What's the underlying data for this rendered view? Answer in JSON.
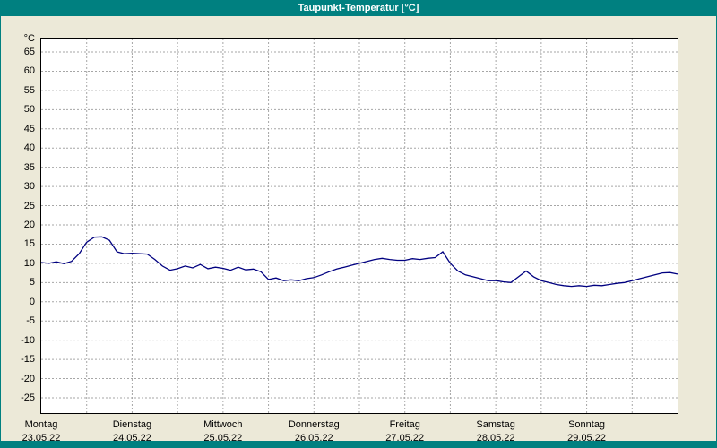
{
  "title_bar": {
    "title": "Taupunkt-Temperatur [°C]",
    "background_color": "#008080",
    "text_color": "#ffffff"
  },
  "chart_data": {
    "type": "line",
    "title": "Taupunkt-Temperatur [°C]",
    "y_axis_unit": "°C",
    "ylim": [
      -25,
      65
    ],
    "y_ticks": [
      65,
      60,
      55,
      50,
      45,
      40,
      35,
      30,
      25,
      20,
      15,
      10,
      5,
      0,
      -5,
      -10,
      -15,
      -20,
      -25
    ],
    "grid": "dashed",
    "grid_color": "#a6a6a6",
    "line_color": "#000080",
    "plot_background": "#ffffff",
    "x_total_hours": 168,
    "x_gridline_interval_hours": 12,
    "x_days": [
      {
        "name": "Montag",
        "date": "23.05.22"
      },
      {
        "name": "Dienstag",
        "date": "24.05.22"
      },
      {
        "name": "Mittwoch",
        "date": "25.05.22"
      },
      {
        "name": "Donnerstag",
        "date": "26.05.22"
      },
      {
        "name": "Freitag",
        "date": "27.05.22"
      },
      {
        "name": "Samstag",
        "date": "28.05.22"
      },
      {
        "name": "Sonntag",
        "date": "29.05.22"
      }
    ],
    "series": [
      {
        "name": "Taupunkt-Temperatur",
        "unit": "°C",
        "hours": [
          0,
          2,
          4,
          6,
          8,
          10,
          12,
          14,
          16,
          18,
          20,
          22,
          24,
          26,
          28,
          30,
          32,
          34,
          36,
          38,
          40,
          42,
          44,
          46,
          48,
          50,
          52,
          54,
          56,
          58,
          60,
          62,
          64,
          66,
          68,
          70,
          72,
          74,
          76,
          78,
          80,
          82,
          84,
          86,
          88,
          90,
          92,
          94,
          96,
          98,
          100,
          102,
          104,
          106,
          108,
          110,
          112,
          114,
          116,
          118,
          120,
          122,
          124,
          126,
          128,
          130,
          132,
          134,
          136,
          138,
          140,
          142,
          144,
          146,
          148,
          150,
          152,
          154,
          156,
          158,
          160,
          162,
          164,
          166,
          168
        ],
        "values": [
          10.2,
          10.0,
          10.4,
          9.9,
          10.5,
          12.5,
          15.5,
          16.8,
          16.9,
          16.0,
          13.0,
          12.5,
          12.6,
          12.5,
          12.4,
          11.0,
          9.3,
          8.2,
          8.6,
          9.3,
          8.8,
          9.7,
          8.6,
          9.0,
          8.7,
          8.2,
          9.0,
          8.3,
          8.5,
          7.8,
          5.8,
          6.2,
          5.5,
          5.7,
          5.5,
          6.0,
          6.3,
          7.0,
          7.8,
          8.5,
          9.0,
          9.5,
          10.0,
          10.5,
          11.0,
          11.3,
          11.0,
          10.8,
          10.8,
          11.2,
          11.0,
          11.3,
          11.5,
          13.0,
          10.0,
          8.0,
          7.0,
          6.5,
          6.0,
          5.5,
          5.5,
          5.2,
          5.0,
          6.5,
          8.0,
          6.5,
          5.5,
          5.0,
          4.5,
          4.2,
          4.0,
          4.2,
          4.0,
          4.3,
          4.2,
          4.5,
          4.8,
          5.0,
          5.5,
          6.0,
          6.5,
          7.0,
          7.5,
          7.6,
          7.2
        ]
      }
    ]
  }
}
